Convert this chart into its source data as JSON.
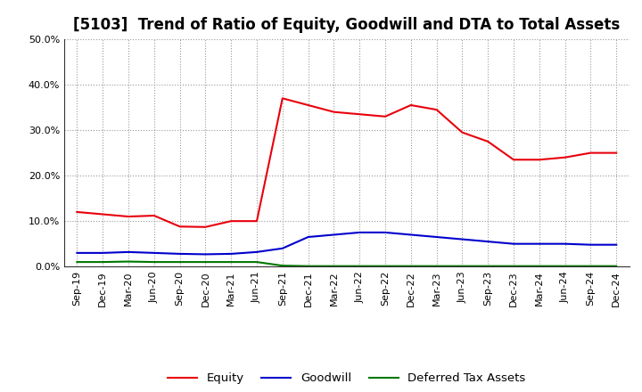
{
  "title": "[5103]  Trend of Ratio of Equity, Goodwill and DTA to Total Assets",
  "labels": [
    "Sep-19",
    "Dec-19",
    "Mar-20",
    "Jun-20",
    "Sep-20",
    "Dec-20",
    "Mar-21",
    "Jun-21",
    "Sep-21",
    "Dec-21",
    "Mar-22",
    "Jun-22",
    "Sep-22",
    "Dec-22",
    "Mar-23",
    "Jun-23",
    "Sep-23",
    "Dec-23",
    "Mar-24",
    "Jun-24",
    "Sep-24",
    "Dec-24"
  ],
  "equity": [
    12.0,
    11.5,
    11.0,
    11.2,
    8.8,
    8.7,
    10.0,
    10.0,
    37.0,
    35.5,
    34.0,
    33.5,
    33.0,
    35.5,
    34.5,
    29.5,
    27.5,
    23.5,
    23.5,
    24.0,
    25.0,
    25.0
  ],
  "goodwill": [
    3.0,
    3.0,
    3.2,
    3.0,
    2.8,
    2.7,
    2.8,
    3.2,
    4.0,
    6.5,
    7.0,
    7.5,
    7.5,
    7.0,
    6.5,
    6.0,
    5.5,
    5.0,
    5.0,
    5.0,
    4.8,
    4.8
  ],
  "dta": [
    1.0,
    1.0,
    1.1,
    1.0,
    1.0,
    1.0,
    1.0,
    1.0,
    0.2,
    0.1,
    0.1,
    0.1,
    0.1,
    0.1,
    0.1,
    0.1,
    0.1,
    0.1,
    0.1,
    0.1,
    0.1,
    0.1
  ],
  "equity_color": "#e8000d",
  "goodwill_color": "#0000cc",
  "dta_color": "#007700",
  "ylim": [
    0.0,
    50.0
  ],
  "yticks": [
    0.0,
    10.0,
    20.0,
    30.0,
    40.0,
    50.0
  ],
  "background_color": "#ffffff",
  "plot_bg_color": "#ffffff",
  "grid_color": "#999999",
  "title_fontsize": 12,
  "tick_fontsize": 8,
  "legend_labels": [
    "Equity",
    "Goodwill",
    "Deferred Tax Assets"
  ]
}
